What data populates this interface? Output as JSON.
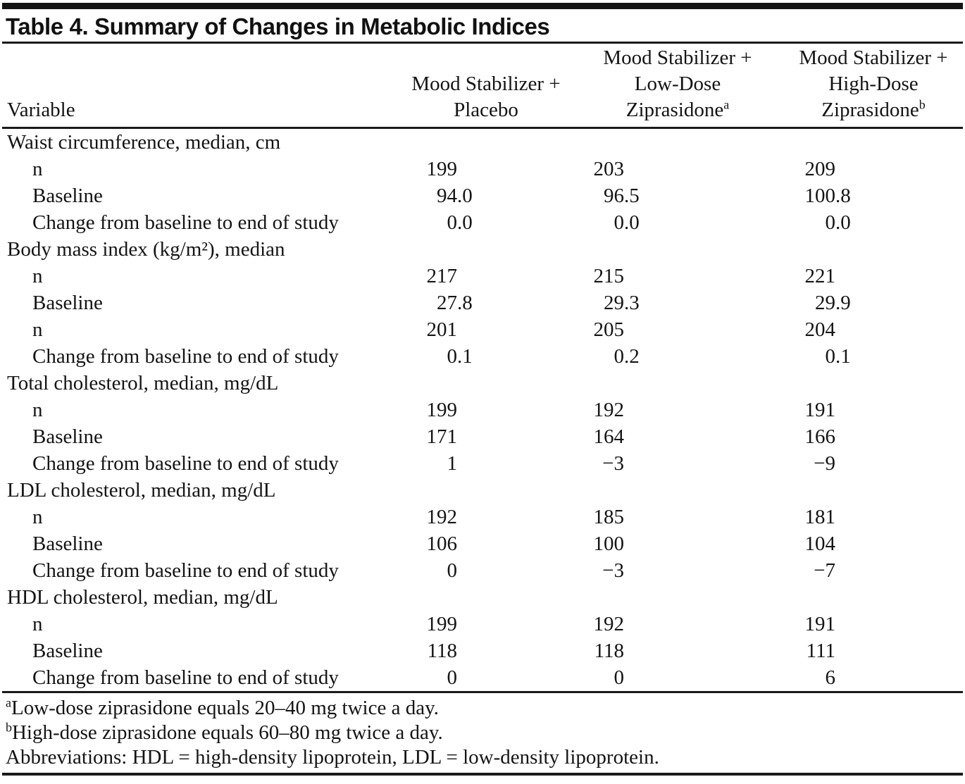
{
  "title": "Table 4. Summary of Changes in Metabolic Indices",
  "header": {
    "variable_label": "Variable",
    "groups": [
      {
        "line1": "Mood Stabilizer +",
        "line2": "Placebo",
        "sup": ""
      },
      {
        "line1": "Mood Stabilizer +",
        "line2": "Low-Dose",
        "line3": "Ziprasidone",
        "sup": "a"
      },
      {
        "line1": "Mood Stabilizer +",
        "line2": "High-Dose",
        "line3": "Ziprasidone",
        "sup": "b"
      }
    ]
  },
  "table": {
    "rows": [
      {
        "label": "Waist circumference, median, cm"
      },
      {
        "label": "n",
        "values": [
          "199",
          "203",
          "209"
        ]
      },
      {
        "label": "Baseline",
        "values": [
          "94.0",
          "96.5",
          "100.8"
        ]
      },
      {
        "label": "Change from baseline to end of study",
        "values": [
          "0.0",
          "0.0",
          "0.0"
        ]
      },
      {
        "label": "Body mass index (kg/m²), median"
      },
      {
        "label": "n",
        "values": [
          "217",
          "215",
          "221"
        ]
      },
      {
        "label": "Baseline",
        "values": [
          "27.8",
          "29.3",
          "29.9"
        ]
      },
      {
        "label": "n",
        "values": [
          "201",
          "205",
          "204"
        ]
      },
      {
        "label": "Change from baseline to end of study",
        "values": [
          "0.1",
          "0.2",
          "0.1"
        ]
      },
      {
        "label": "Total cholesterol, median, mg/dL"
      },
      {
        "label": "n",
        "values": [
          "199",
          "192",
          "191"
        ]
      },
      {
        "label": "Baseline",
        "values": [
          "171",
          "164",
          "166"
        ]
      },
      {
        "label": "Change from baseline to end of study",
        "values": [
          "1",
          "−3",
          "−9"
        ]
      },
      {
        "label": "LDL cholesterol, median, mg/dL"
      },
      {
        "label": "n",
        "values": [
          "192",
          "185",
          "181"
        ]
      },
      {
        "label": "Baseline",
        "values": [
          "106",
          "100",
          "104"
        ]
      },
      {
        "label": "Change from baseline to end of study",
        "values": [
          "0",
          "−3",
          "−7"
        ]
      },
      {
        "label": "HDL cholesterol, median, mg/dL"
      },
      {
        "label": "n",
        "values": [
          "199",
          "192",
          "191"
        ]
      },
      {
        "label": "Baseline",
        "values": [
          "118",
          "118",
          "111"
        ]
      },
      {
        "label": "Change from baseline to end of study",
        "values": [
          "0",
          "0",
          "6"
        ]
      }
    ]
  },
  "footnotes": [
    {
      "sup": "a",
      "text": "Low-dose ziprasidone equals 20–40 mg twice a day."
    },
    {
      "sup": "b",
      "text": "High-dose ziprasidone equals 60–80 mg twice a day."
    },
    {
      "sup": "",
      "text": "Abbreviations: HDL = high-density lipoprotein, LDL = low-density lipoprotein."
    }
  ]
}
